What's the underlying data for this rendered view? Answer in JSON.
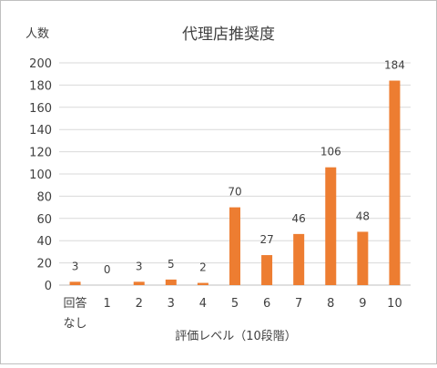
{
  "chart_data": {
    "type": "bar",
    "title": "代理店推奨度",
    "ylabel": "人数",
    "xlabel": "評価レベル（10段階）",
    "categories": [
      [
        "回答",
        "なし"
      ],
      [
        "1"
      ],
      [
        "2"
      ],
      [
        "3"
      ],
      [
        "4"
      ],
      [
        "5"
      ],
      [
        "6"
      ],
      [
        "7"
      ],
      [
        "8"
      ],
      [
        "9"
      ],
      [
        "10"
      ]
    ],
    "values": [
      3,
      0,
      3,
      5,
      2,
      70,
      27,
      46,
      106,
      48,
      184
    ],
    "ylim": [
      0,
      200
    ],
    "yticks": [
      0,
      20,
      40,
      60,
      80,
      100,
      120,
      140,
      160,
      180,
      200
    ],
    "grid": true,
    "bar_color": "#ED7D31",
    "data_labels": true
  }
}
